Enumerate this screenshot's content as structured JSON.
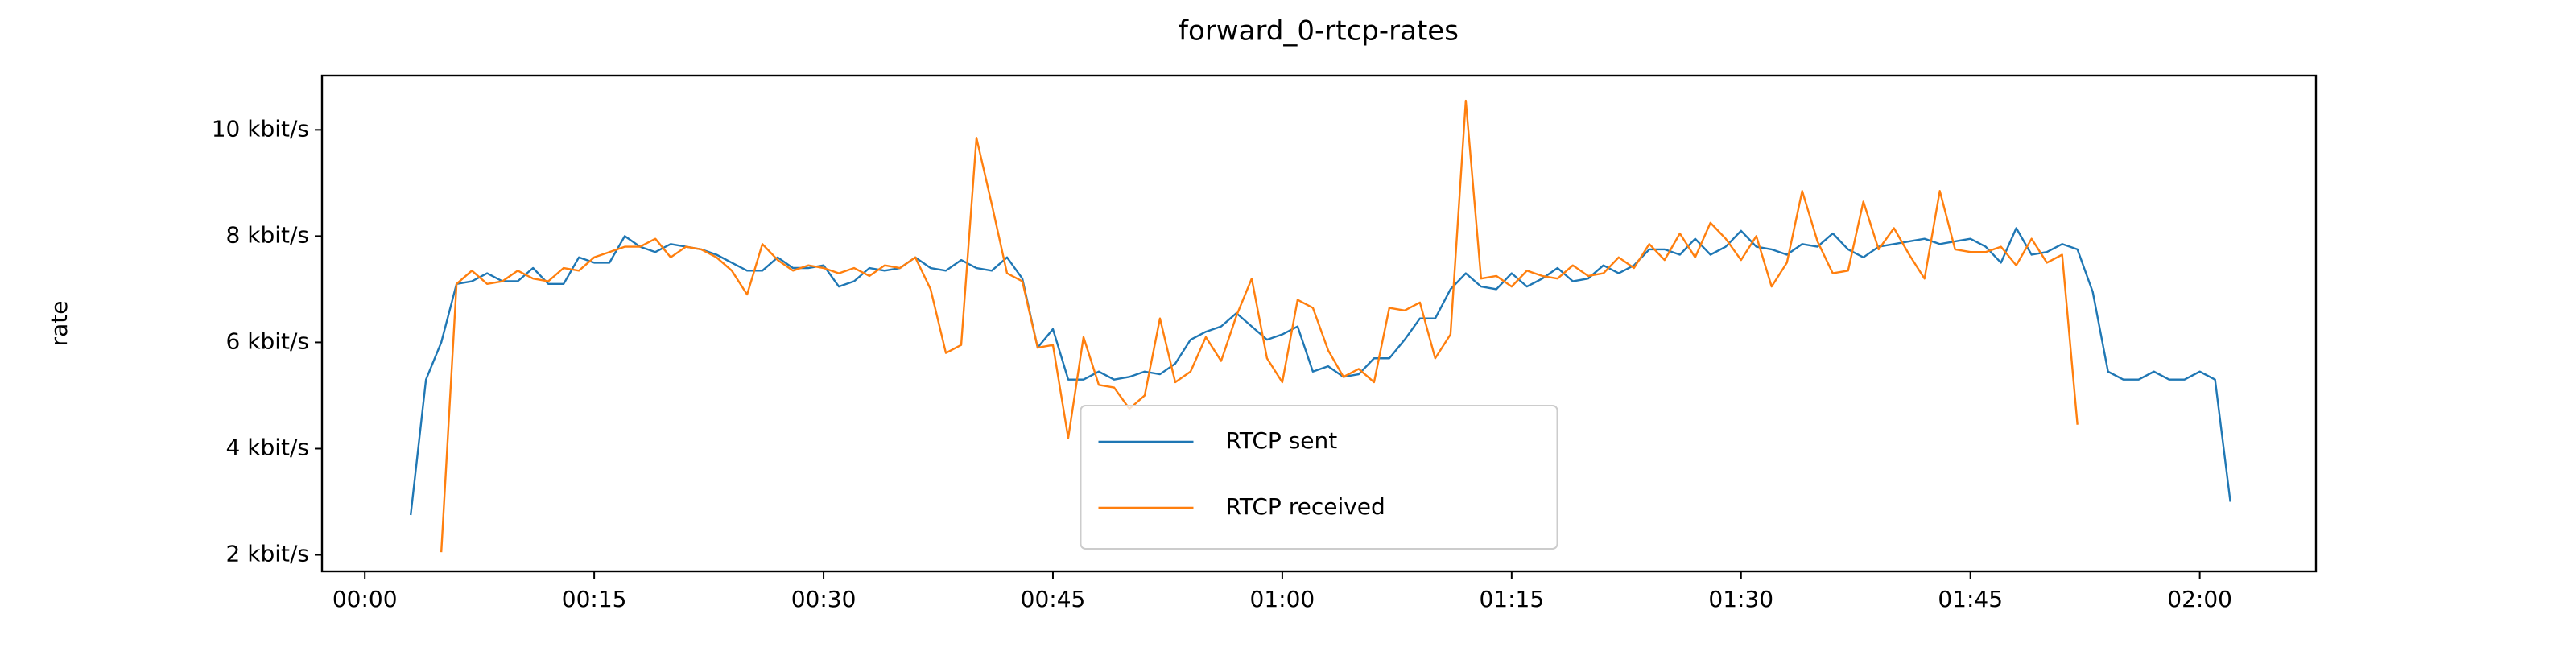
{
  "chart_data": {
    "type": "line",
    "title": "forward_0-rtcp-rates",
    "y_label": "rate",
    "x": [
      3,
      4,
      5,
      6,
      7,
      8,
      9,
      10,
      11,
      12,
      13,
      14,
      15,
      16,
      17,
      18,
      19,
      20,
      21,
      22,
      23,
      24,
      25,
      26,
      27,
      28,
      29,
      30,
      31,
      32,
      33,
      34,
      35,
      36,
      37,
      38,
      39,
      40,
      41,
      42,
      43,
      44,
      45,
      46,
      47,
      48,
      49,
      50,
      51,
      52,
      53,
      54,
      55,
      56,
      57,
      58,
      59,
      60,
      61,
      62,
      63,
      64,
      65,
      66,
      67,
      68,
      69,
      70,
      71,
      72,
      73,
      74,
      75,
      76,
      77,
      78,
      79,
      80,
      81,
      82,
      83,
      84,
      85,
      86,
      87,
      88,
      89,
      90,
      91,
      92,
      93,
      94,
      95,
      96,
      97,
      98,
      99,
      100,
      101,
      102,
      103,
      104,
      105,
      106,
      107,
      108,
      109,
      110,
      111,
      112,
      113,
      114,
      115,
      116,
      117,
      118,
      119,
      120,
      121,
      122
    ],
    "series": [
      {
        "name": "RTCP sent",
        "color": "#1f77b4",
        "values": [
          2.75,
          5.3,
          6.0,
          7.1,
          7.15,
          7.3,
          7.15,
          7.15,
          7.4,
          7.1,
          7.1,
          7.6,
          7.5,
          7.5,
          8.0,
          7.8,
          7.7,
          7.85,
          7.8,
          7.75,
          7.65,
          7.5,
          7.35,
          7.35,
          7.6,
          7.4,
          7.4,
          7.45,
          7.05,
          7.15,
          7.4,
          7.35,
          7.4,
          7.6,
          7.4,
          7.35,
          7.55,
          7.4,
          7.35,
          7.6,
          7.2,
          5.9,
          6.25,
          5.3,
          5.3,
          5.45,
          5.3,
          5.35,
          5.45,
          5.4,
          5.6,
          6.05,
          6.2,
          6.3,
          6.55,
          6.3,
          6.05,
          6.15,
          6.3,
          5.45,
          5.55,
          5.35,
          5.4,
          5.7,
          5.7,
          6.05,
          6.45,
          6.45,
          7.0,
          7.3,
          7.05,
          7.0,
          7.3,
          7.05,
          7.2,
          7.4,
          7.15,
          7.2,
          7.45,
          7.3,
          7.45,
          7.75,
          7.75,
          7.65,
          7.95,
          7.65,
          7.8,
          8.1,
          7.8,
          7.75,
          7.65,
          7.85,
          7.8,
          8.05,
          7.75,
          7.6,
          7.8,
          7.85,
          7.9,
          7.95,
          7.85,
          7.9,
          7.95,
          7.8,
          7.5,
          8.15,
          7.65,
          7.7,
          7.85,
          7.75,
          6.95,
          5.45,
          5.3,
          5.3,
          5.45,
          5.3,
          5.3,
          5.45,
          5.3,
          3.0
        ]
      },
      {
        "name": "RTCP received",
        "color": "#ff7f0e",
        "values": [
          null,
          null,
          2.05,
          7.1,
          7.35,
          7.1,
          7.15,
          7.35,
          7.2,
          7.15,
          7.4,
          7.35,
          7.6,
          7.7,
          7.8,
          7.8,
          7.95,
          7.6,
          7.8,
          7.75,
          7.6,
          7.35,
          6.9,
          7.85,
          7.55,
          7.35,
          7.45,
          7.4,
          7.3,
          7.4,
          7.25,
          7.45,
          7.4,
          7.6,
          7.0,
          5.8,
          5.95,
          9.85,
          8.6,
          7.3,
          7.15,
          5.9,
          5.95,
          4.2,
          6.1,
          5.2,
          5.15,
          4.75,
          5.0,
          6.45,
          5.25,
          5.45,
          6.1,
          5.65,
          6.5,
          7.2,
          5.7,
          5.25,
          6.8,
          6.65,
          5.85,
          5.35,
          5.5,
          5.25,
          6.65,
          6.6,
          6.75,
          5.7,
          6.15,
          10.55,
          7.2,
          7.25,
          7.05,
          7.35,
          7.25,
          7.2,
          7.45,
          7.25,
          7.3,
          7.6,
          7.4,
          7.85,
          7.55,
          8.05,
          7.6,
          8.25,
          7.95,
          7.55,
          8.0,
          7.05,
          7.5,
          8.85,
          7.9,
          7.3,
          7.35,
          8.65,
          7.75,
          8.15,
          7.65,
          7.2,
          8.85,
          7.75,
          7.7,
          7.7,
          7.8,
          7.45,
          7.95,
          7.5,
          7.65,
          4.45,
          null,
          null,
          null,
          null,
          null,
          null,
          null,
          null,
          null,
          null
        ]
      }
    ],
    "xlim": [
      -2.8,
      127.6
    ],
    "ylim": [
      1.69,
      11.02
    ],
    "xticks": [
      {
        "value": 0,
        "label": "00:00"
      },
      {
        "value": 15,
        "label": "00:15"
      },
      {
        "value": 30,
        "label": "00:30"
      },
      {
        "value": 45,
        "label": "00:45"
      },
      {
        "value": 60,
        "label": "01:00"
      },
      {
        "value": 75,
        "label": "01:15"
      },
      {
        "value": 90,
        "label": "01:30"
      },
      {
        "value": 105,
        "label": "01:45"
      },
      {
        "value": 120,
        "label": "02:00"
      }
    ],
    "yticks": [
      {
        "value": 2,
        "label": "2 kbit/s"
      },
      {
        "value": 4,
        "label": "4 kbit/s"
      },
      {
        "value": 6,
        "label": "6 kbit/s"
      },
      {
        "value": 8,
        "label": "8 kbit/s"
      },
      {
        "value": 10,
        "label": "10 kbit/s"
      }
    ],
    "grid": false,
    "legend_location": "lower center"
  }
}
